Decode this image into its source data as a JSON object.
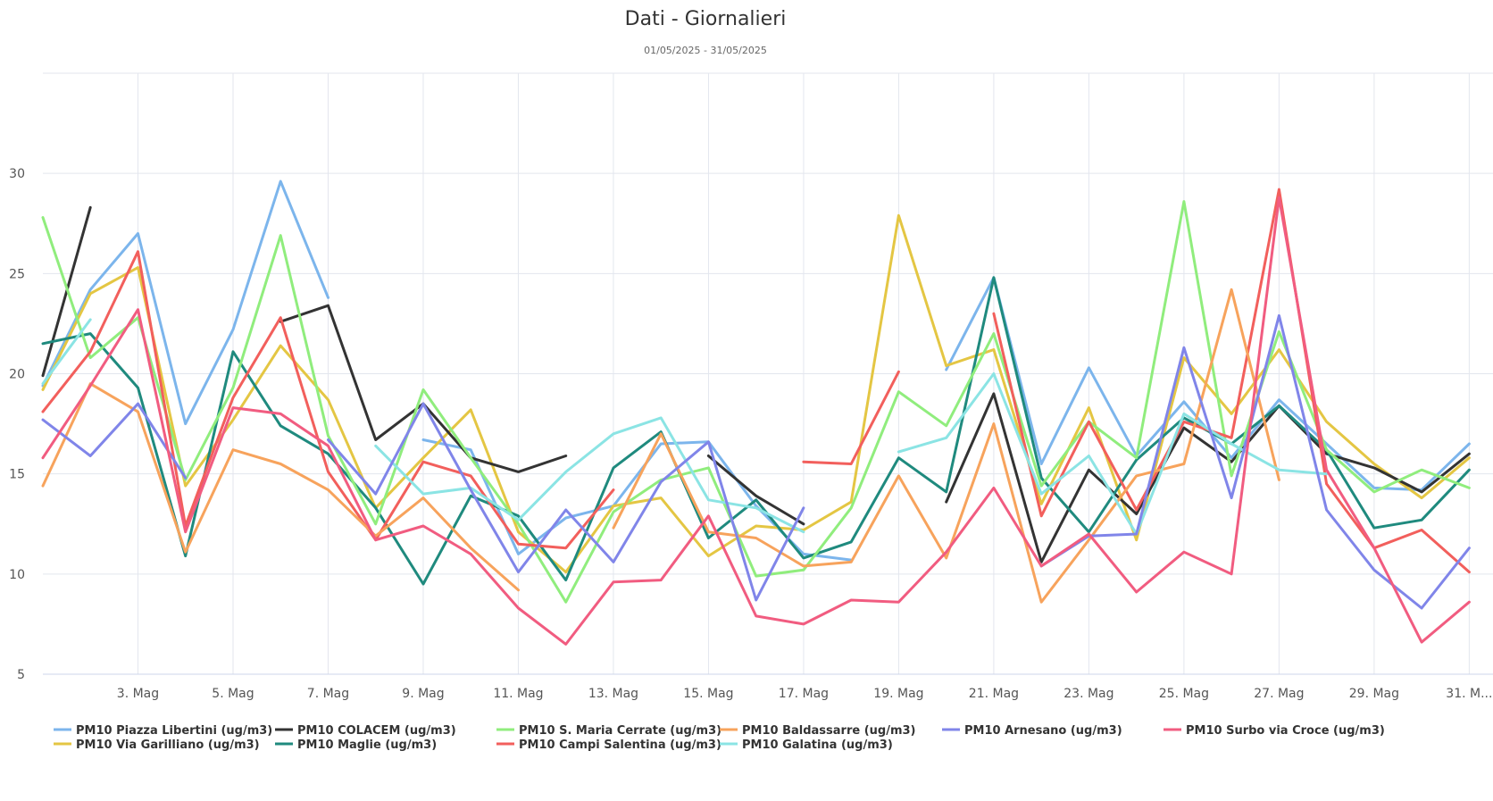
{
  "chart_data": {
    "type": "line",
    "title": "Dati - Giornalieri",
    "subtitle": "01/05/2025 - 31/05/2025",
    "xlabel": "",
    "ylabel": "",
    "x": [
      1,
      2,
      3,
      4,
      5,
      6,
      7,
      8,
      9,
      10,
      11,
      12,
      13,
      14,
      15,
      16,
      17,
      18,
      19,
      20,
      21,
      22,
      23,
      24,
      25,
      26,
      27,
      28,
      29,
      30,
      31
    ],
    "xlim": [
      1,
      31.5
    ],
    "ylim": [
      5,
      35
    ],
    "grid": true,
    "legend_position": "bottom",
    "y_ticks": [
      5,
      10,
      15,
      20,
      25,
      30
    ],
    "x_ticks": [
      {
        "value": 3,
        "label": "3. Mag"
      },
      {
        "value": 5,
        "label": "5. Mag"
      },
      {
        "value": 7,
        "label": "7. Mag"
      },
      {
        "value": 9,
        "label": "9. Mag"
      },
      {
        "value": 11,
        "label": "11. Mag"
      },
      {
        "value": 13,
        "label": "13. Mag"
      },
      {
        "value": 15,
        "label": "15. Mag"
      },
      {
        "value": 17,
        "label": "17. Mag"
      },
      {
        "value": 19,
        "label": "19. Mag"
      },
      {
        "value": 21,
        "label": "21. Mag"
      },
      {
        "value": 23,
        "label": "23. Mag"
      },
      {
        "value": 25,
        "label": "25. Mag"
      },
      {
        "value": 27,
        "label": "27. Mag"
      },
      {
        "value": 29,
        "label": "29. Mag"
      },
      {
        "value": 31,
        "label": "31. M..."
      }
    ],
    "series": [
      {
        "name": "PM10 Piazza Libertini (ug/m3)",
        "color": "#7cb5ec",
        "values": [
          19.4,
          24.2,
          27.0,
          17.5,
          22.2,
          29.6,
          23.8,
          null,
          16.7,
          16.2,
          11.0,
          12.8,
          13.4,
          16.5,
          16.6,
          13.4,
          11.0,
          10.7,
          null,
          20.2,
          24.8,
          15.5,
          20.3,
          15.9,
          18.6,
          15.8,
          18.7,
          16.5,
          14.3,
          14.2,
          16.5
        ]
      },
      {
        "name": "PM10 Via Garilliano (ug/m3)",
        "color": "#e4c643",
        "values": [
          19.2,
          24.0,
          25.3,
          14.4,
          17.7,
          21.4,
          18.7,
          13.3,
          15.8,
          18.2,
          12.1,
          10.1,
          13.4,
          13.8,
          10.9,
          12.4,
          12.2,
          13.6,
          27.9,
          20.4,
          21.2,
          13.5,
          18.3,
          11.7,
          20.8,
          18.0,
          21.2,
          17.6,
          15.5,
          13.8,
          15.8
        ]
      },
      {
        "name": "PM10 COLACEM (ug/m3)",
        "color": "#333333",
        "values": [
          19.9,
          28.3,
          null,
          null,
          null,
          22.6,
          23.4,
          16.7,
          18.5,
          15.8,
          15.1,
          15.9,
          null,
          null,
          15.9,
          13.9,
          12.5,
          null,
          null,
          13.6,
          19.0,
          10.6,
          15.2,
          13.0,
          17.3,
          15.6,
          18.4,
          16.0,
          15.3,
          14.1,
          16.0
        ]
      },
      {
        "name": "PM10 Maglie (ug/m3)",
        "color": "#1f8a7e",
        "values": [
          21.5,
          22.0,
          19.3,
          10.9,
          21.1,
          17.4,
          16.0,
          13.3,
          9.5,
          13.9,
          12.9,
          9.7,
          15.3,
          17.1,
          11.8,
          13.7,
          10.8,
          11.6,
          15.8,
          14.1,
          24.8,
          14.8,
          12.1,
          15.7,
          17.8,
          16.5,
          18.4,
          16.2,
          12.3,
          12.7,
          15.2
        ]
      },
      {
        "name": "PM10 S. Maria Cerrate (ug/m3)",
        "color": "#90ed7d",
        "values": [
          27.8,
          20.8,
          22.8,
          14.7,
          19.3,
          26.9,
          16.9,
          12.5,
          19.2,
          15.8,
          12.5,
          8.6,
          13.1,
          14.7,
          15.3,
          9.9,
          10.2,
          13.3,
          19.1,
          17.4,
          22.0,
          14.4,
          17.6,
          15.8,
          28.6,
          14.9,
          22.1,
          16.2,
          14.1,
          15.2,
          14.3
        ]
      },
      {
        "name": "PM10 Campi Salentina (ug/m3)",
        "color": "#f25f5c",
        "values": [
          18.1,
          21.1,
          26.1,
          12.4,
          18.8,
          22.8,
          15.1,
          11.7,
          15.6,
          14.9,
          11.5,
          11.3,
          14.2,
          null,
          null,
          null,
          15.6,
          15.5,
          20.1,
          null,
          23.0,
          12.9,
          17.6,
          13.2,
          17.6,
          16.8,
          29.2,
          14.5,
          11.3,
          12.2,
          10.1
        ]
      },
      {
        "name": "PM10 Baldassarre (ug/m3)",
        "color": "#f7a35c",
        "values": [
          14.4,
          19.5,
          18.1,
          11.1,
          16.2,
          15.5,
          14.2,
          11.9,
          13.8,
          11.3,
          9.2,
          null,
          12.3,
          17.0,
          12.1,
          11.8,
          10.4,
          10.6,
          14.9,
          10.8,
          17.5,
          8.6,
          11.7,
          14.9,
          15.5,
          24.2,
          14.7,
          null,
          null,
          null,
          null
        ]
      },
      {
        "name": "PM10 Galatina (ug/m3)",
        "color": "#8be4e4",
        "values": [
          19.5,
          22.7,
          null,
          null,
          null,
          null,
          null,
          16.4,
          14.0,
          14.3,
          12.7,
          15.1,
          17.0,
          17.8,
          13.7,
          13.3,
          12.1,
          null,
          16.1,
          16.8,
          20.0,
          14.0,
          15.9,
          12.0,
          18.0,
          16.5,
          15.2,
          15.0,
          null,
          null,
          null
        ]
      },
      {
        "name": "PM10 Arnesano (ug/m3)",
        "color": "#8085e9",
        "values": [
          17.7,
          15.9,
          18.5,
          14.8,
          null,
          null,
          16.7,
          14.0,
          18.5,
          14.2,
          10.1,
          13.2,
          10.6,
          14.6,
          16.6,
          8.7,
          13.3,
          null,
          null,
          null,
          null,
          10.4,
          11.9,
          12.0,
          21.3,
          13.8,
          22.9,
          13.2,
          10.2,
          8.3,
          11.3
        ]
      },
      {
        "name": "PM10 Surbo via Croce (ug/m3)",
        "color": "#f15c80",
        "values": [
          15.8,
          19.4,
          23.2,
          12.1,
          18.3,
          18.0,
          16.4,
          11.7,
          12.4,
          11.0,
          8.3,
          6.5,
          9.6,
          9.7,
          12.9,
          7.9,
          7.5,
          8.7,
          8.6,
          11.1,
          14.3,
          10.4,
          12.0,
          9.1,
          11.1,
          10.0,
          28.8,
          15.2,
          11.3,
          6.6,
          8.6
        ]
      }
    ],
    "legend": {
      "rows": [
        [
          "PM10 Piazza Libertini (ug/m3)",
          "PM10 COLACEM (ug/m3)",
          "PM10 S. Maria Cerrate (ug/m3)",
          "PM10 Baldassarre (ug/m3)",
          "PM10 Arnesano (ug/m3)",
          "PM10 Surbo via Croce (ug/m3)"
        ],
        [
          "PM10 Via Garilliano (ug/m3)",
          "PM10 Maglie (ug/m3)",
          "PM10 Campi Salentina (ug/m3)",
          "PM10 Galatina (ug/m3)"
        ]
      ]
    }
  }
}
